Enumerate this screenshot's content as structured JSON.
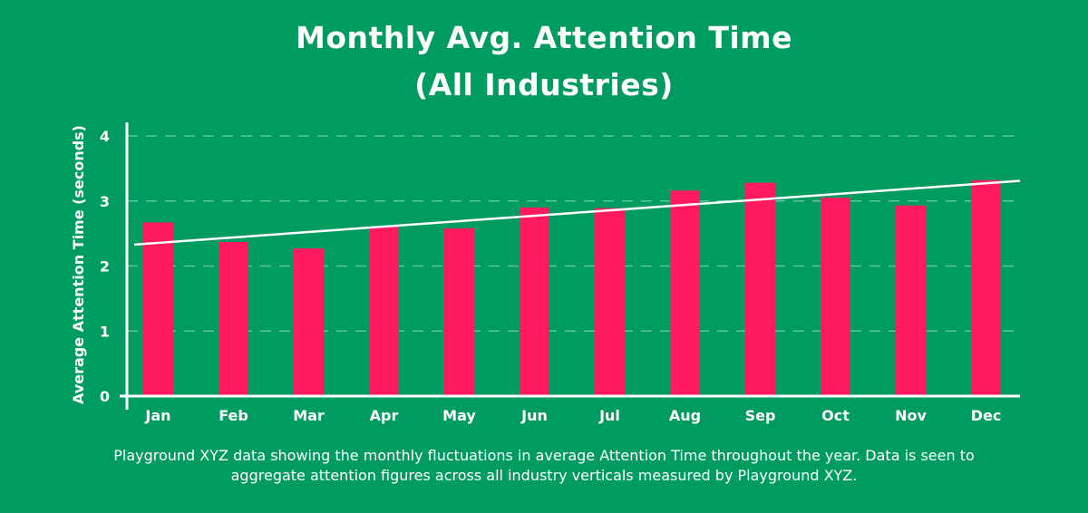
{
  "title": {
    "line1": "Monthly Avg. Attention Time",
    "line2": "(All Industries)"
  },
  "caption": {
    "line1": "Playground XYZ data showing the monthly fluctuations in average Attention Time throughout the year. Data is seen to",
    "line2": "aggregate attention figures across all industry verticals measured by Playground XYZ."
  },
  "colors": {
    "background": "#009b5f",
    "bar": "#ff1a5e",
    "trendline": "#ffffff",
    "gridline": "#5cc79a",
    "axis": "#ffffff"
  },
  "chart_data": {
    "type": "bar",
    "title": "Monthly Avg. Attention Time (All Industries)",
    "xlabel": "",
    "ylabel": "Average Attention Time (seconds)",
    "categories": [
      "Jan",
      "Feb",
      "Mar",
      "Apr",
      "May",
      "Jun",
      "Jul",
      "Aug",
      "Sep",
      "Oct",
      "Nov",
      "Dec"
    ],
    "values": [
      2.67,
      2.37,
      2.27,
      2.6,
      2.58,
      2.9,
      2.89,
      3.16,
      3.28,
      3.05,
      2.93,
      3.32
    ],
    "yticks": [
      "0",
      "1",
      "2",
      "3",
      "4"
    ],
    "ylim": [
      0,
      4
    ],
    "grid": "horizontal dashed",
    "trendline": {
      "type": "linear",
      "start": 2.33,
      "end": 3.31
    }
  }
}
